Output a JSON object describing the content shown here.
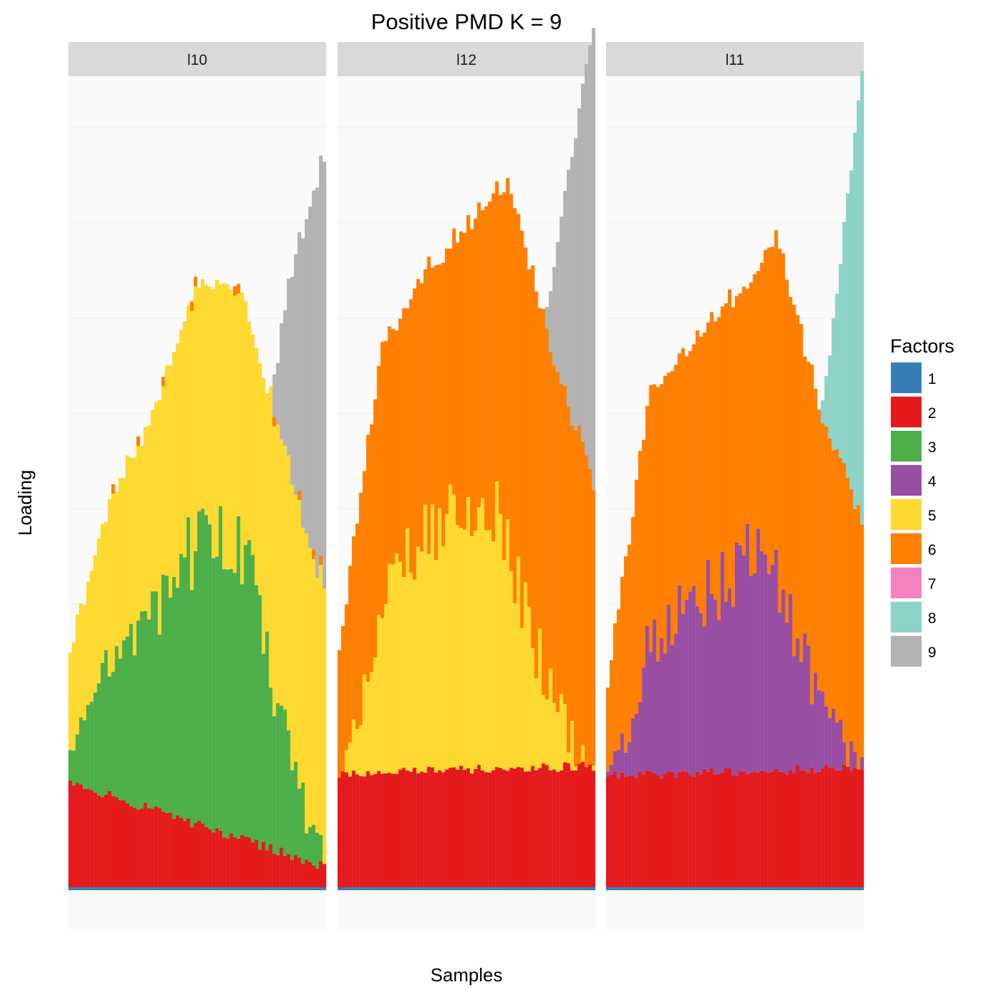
{
  "chart_data": {
    "type": "bar",
    "stacked": true,
    "title": "Positive PMD K = 9",
    "xlabel": "Samples",
    "ylabel": "Loading",
    "grid": true,
    "legend": {
      "title": "Factors",
      "position": "right",
      "entries": [
        {
          "label": "1",
          "color": "#377EB8"
        },
        {
          "label": "2",
          "color": "#E41A1C"
        },
        {
          "label": "3",
          "color": "#4DAF4A"
        },
        {
          "label": "4",
          "color": "#984EA3"
        },
        {
          "label": "5",
          "color": "#FFD92F"
        },
        {
          "label": "6",
          "color": "#FF7F00"
        },
        {
          "label": "7",
          "color": "#F781BF"
        },
        {
          "label": "8",
          "color": "#8DD3C7"
        },
        {
          "label": "9",
          "color": "#B3B3B3"
        }
      ]
    },
    "panels": [
      {
        "name": "l10",
        "factor_order": [
          "1",
          "2",
          "3",
          "5",
          "6",
          "7",
          "8",
          "9"
        ],
        "n": 72,
        "regime": "mixed",
        "base_start": 0.11,
        "base_end": 0.022,
        "mid": [
          0.26,
          0.46,
          0.48,
          0.5,
          0.55,
          0.51,
          0.3,
          0.0
        ],
        "mid_total": [
          0.14,
          0.32,
          0.42,
          0.56,
          0.58,
          0.43,
          0.29
        ],
        "top": [
          0.0,
          0.0,
          0.0,
          0.0,
          0.05,
          0.32,
          0.6,
          0.74
        ],
        "spike": [
          0.0,
          0.0,
          0.0,
          0.03,
          0.07,
          0.15,
          0.2,
          0.25
        ]
      },
      {
        "name": "l12",
        "factor_order": [
          "1",
          "2",
          "5",
          "6",
          "9"
        ],
        "n": 72,
        "regime": "mixed",
        "base_start": 0.12,
        "base_end": 0.127,
        "mid": [
          0.0,
          0.38,
          0.46,
          0.48,
          0.5,
          0.34,
          0.15,
          0.0
        ],
        "mid_total": [
          0.13,
          0.45,
          0.52,
          0.57,
          0.62,
          0.44,
          0.3
        ],
        "top": [
          0.0,
          0.0,
          0.0,
          0.0,
          0.05,
          0.3,
          0.55,
          0.78
        ],
        "spike": [
          0.0,
          0.0,
          0.0,
          0.08,
          0.15,
          0.25,
          0.3,
          0.35
        ]
      },
      {
        "name": "l11",
        "factor_order": [
          "1",
          "2",
          "4",
          "6",
          "8"
        ],
        "n": 72,
        "regime": "mixed",
        "base_start": 0.118,
        "base_end": 0.125,
        "mid": [
          0.0,
          0.32,
          0.38,
          0.41,
          0.45,
          0.35,
          0.15,
          0.0
        ],
        "mid_total": [
          0.1,
          0.4,
          0.45,
          0.5,
          0.56,
          0.38,
          0.26
        ],
        "top": [
          0.0,
          0.0,
          0.0,
          0.0,
          0.02,
          0.21,
          0.4,
          0.73
        ],
        "spike": [
          0.0,
          0.0,
          0.0,
          0.06,
          0.1,
          0.16,
          0.2,
          0.25
        ]
      }
    ],
    "ylim": [
      0,
      0.82
    ]
  }
}
